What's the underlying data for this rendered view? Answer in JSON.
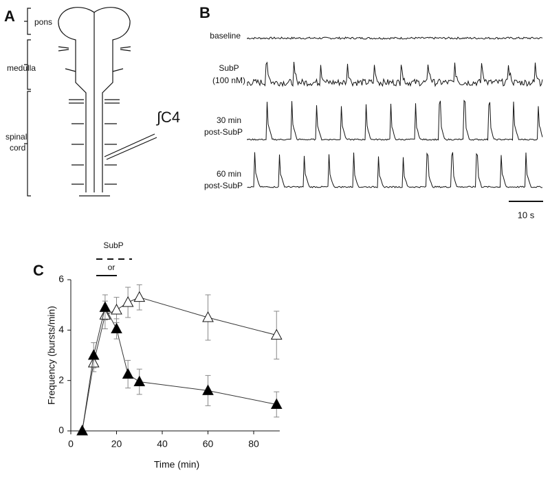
{
  "panel_a": {
    "label": "A",
    "regions": [
      [
        "pons"
      ],
      [
        "medulla"
      ],
      [
        "spinal",
        "cord"
      ]
    ],
    "recording": "∫C4"
  },
  "panel_b": {
    "label": "B",
    "traces": [
      [
        "baseline"
      ],
      [
        "SubP",
        "(100 nM)"
      ],
      [
        "30 min",
        "post-SubP"
      ],
      [
        "60 min",
        "post-SubP"
      ]
    ],
    "scale_bar": "10 s"
  },
  "chart_data": {
    "type": "line",
    "label": "C",
    "treatment": [
      "SubP",
      "or"
    ],
    "xlabel": "Time (min)",
    "ylabel": "Frequency (bursts/min)",
    "xlim": [
      0,
      95
    ],
    "ylim": [
      0,
      6
    ],
    "xticks": [
      0,
      20,
      40,
      60,
      80
    ],
    "yticks": [
      0,
      2,
      4,
      6
    ],
    "grid": false,
    "series": [
      {
        "marker": "open",
        "color": "#ffffff",
        "x": [
          5,
          10,
          15,
          20,
          25,
          30,
          60,
          90
        ],
        "values": [
          0,
          2.7,
          4.6,
          4.8,
          5.1,
          5.3,
          4.5,
          3.8
        ],
        "errors": [
          0,
          0.35,
          0.55,
          0.5,
          0.6,
          0.5,
          0.9,
          0.95
        ]
      },
      {
        "marker": "filled",
        "color": "#000000",
        "x": [
          5,
          10,
          15,
          20,
          25,
          30,
          60,
          90
        ],
        "values": [
          0,
          3.0,
          4.9,
          4.05,
          2.25,
          1.95,
          1.6,
          1.05
        ],
        "errors": [
          0,
          0.5,
          0.5,
          0.4,
          0.55,
          0.5,
          0.6,
          0.5
        ]
      }
    ]
  }
}
